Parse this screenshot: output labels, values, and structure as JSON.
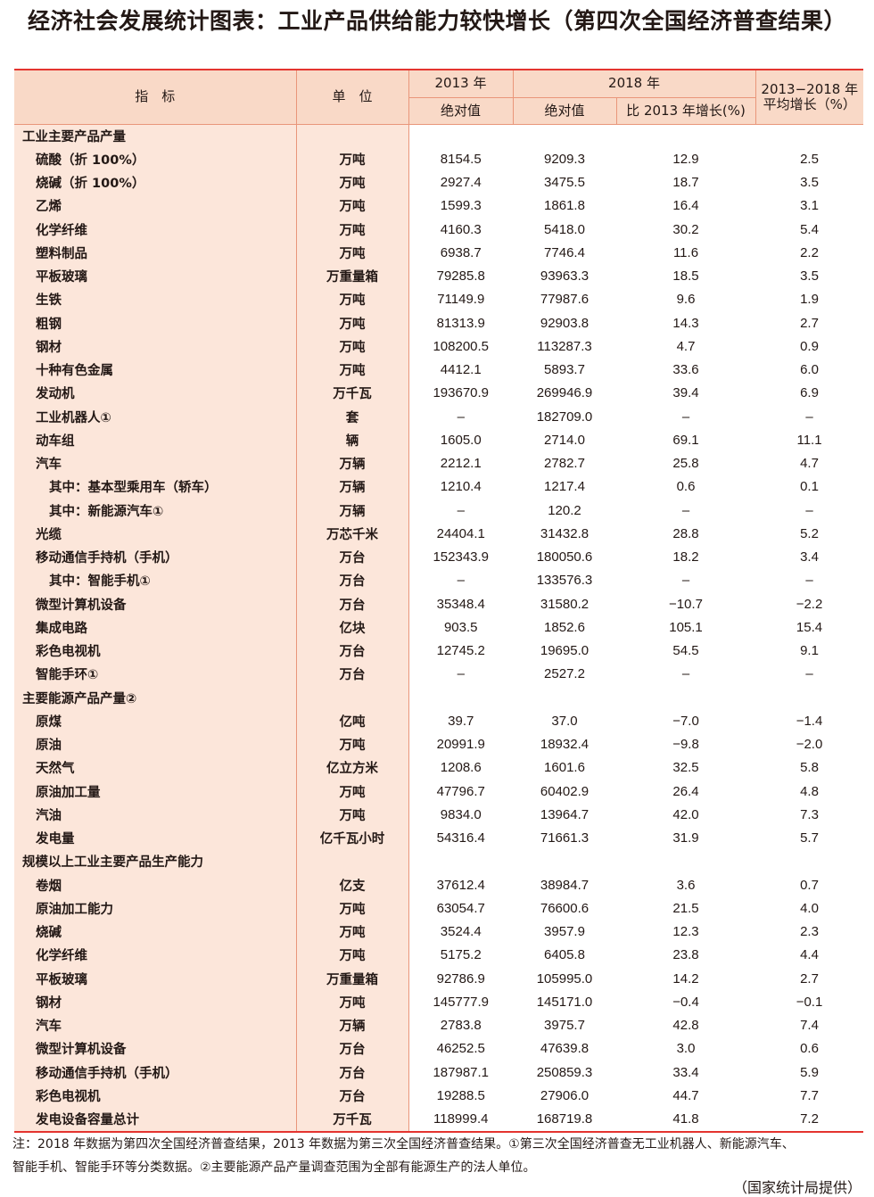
{
  "title": "经济社会发展统计图表：工业产品供给能力较快增长（第四次全国经济普查结果）",
  "header": {
    "indicator": "指　标",
    "unit": "单　位",
    "y2013": "2013 年",
    "y2018": "2018 年",
    "avg": "2013−2018 年平均增长（%）",
    "abs2013": "绝对值",
    "abs2018": "绝对值",
    "growth": "比 2013 年增长(%)"
  },
  "rows": [
    {
      "name": "工业主要产品产量",
      "unit": "",
      "a": "",
      "b": "",
      "c": "",
      "d": "",
      "level": 0
    },
    {
      "name": "硫酸（折 100%）",
      "unit": "万吨",
      "a": "8154.5",
      "b": "9209.3",
      "c": "12.9",
      "d": "2.5",
      "level": 1
    },
    {
      "name": "烧碱（折 100%）",
      "unit": "万吨",
      "a": "2927.4",
      "b": "3475.5",
      "c": "18.7",
      "d": "3.5",
      "level": 1
    },
    {
      "name": "乙烯",
      "unit": "万吨",
      "a": "1599.3",
      "b": "1861.8",
      "c": "16.4",
      "d": "3.1",
      "level": 1
    },
    {
      "name": "化学纤维",
      "unit": "万吨",
      "a": "4160.3",
      "b": "5418.0",
      "c": "30.2",
      "d": "5.4",
      "level": 1
    },
    {
      "name": "塑料制品",
      "unit": "万吨",
      "a": "6938.7",
      "b": "7746.4",
      "c": "11.6",
      "d": "2.2",
      "level": 1
    },
    {
      "name": "平板玻璃",
      "unit": "万重量箱",
      "a": "79285.8",
      "b": "93963.3",
      "c": "18.5",
      "d": "3.5",
      "level": 1
    },
    {
      "name": "生铁",
      "unit": "万吨",
      "a": "71149.9",
      "b": "77987.6",
      "c": "9.6",
      "d": "1.9",
      "level": 1
    },
    {
      "name": "粗钢",
      "unit": "万吨",
      "a": "81313.9",
      "b": "92903.8",
      "c": "14.3",
      "d": "2.7",
      "level": 1
    },
    {
      "name": "钢材",
      "unit": "万吨",
      "a": "108200.5",
      "b": "113287.3",
      "c": "4.7",
      "d": "0.9",
      "level": 1
    },
    {
      "name": "十种有色金属",
      "unit": "万吨",
      "a": "4412.1",
      "b": "5893.7",
      "c": "33.6",
      "d": "6.0",
      "level": 1
    },
    {
      "name": "发动机",
      "unit": "万千瓦",
      "a": "193670.9",
      "b": "269946.9",
      "c": "39.4",
      "d": "6.9",
      "level": 1
    },
    {
      "name": "工业机器人①",
      "unit": "套",
      "a": "–",
      "b": "182709.0",
      "c": "–",
      "d": "–",
      "level": 1
    },
    {
      "name": "动车组",
      "unit": "辆",
      "a": "1605.0",
      "b": "2714.0",
      "c": "69.1",
      "d": "11.1",
      "level": 1
    },
    {
      "name": "汽车",
      "unit": "万辆",
      "a": "2212.1",
      "b": "2782.7",
      "c": "25.8",
      "d": "4.7",
      "level": 1
    },
    {
      "name": "其中：基本型乘用车（轿车）",
      "unit": "万辆",
      "a": "1210.4",
      "b": "1217.4",
      "c": "0.6",
      "d": "0.1",
      "level": 2
    },
    {
      "name": "其中：新能源汽车①",
      "unit": "万辆",
      "a": "–",
      "b": "120.2",
      "c": "–",
      "d": "–",
      "level": 2
    },
    {
      "name": "光缆",
      "unit": "万芯千米",
      "a": "24404.1",
      "b": "31432.8",
      "c": "28.8",
      "d": "5.2",
      "level": 1
    },
    {
      "name": "移动通信手持机（手机）",
      "unit": "万台",
      "a": "152343.9",
      "b": "180050.6",
      "c": "18.2",
      "d": "3.4",
      "level": 1
    },
    {
      "name": "其中：智能手机①",
      "unit": "万台",
      "a": "–",
      "b": "133576.3",
      "c": "–",
      "d": "–",
      "level": 2
    },
    {
      "name": "微型计算机设备",
      "unit": "万台",
      "a": "35348.4",
      "b": "31580.2",
      "c": "−10.7",
      "d": "−2.2",
      "level": 1
    },
    {
      "name": "集成电路",
      "unit": "亿块",
      "a": "903.5",
      "b": "1852.6",
      "c": "105.1",
      "d": "15.4",
      "level": 1
    },
    {
      "name": "彩色电视机",
      "unit": "万台",
      "a": "12745.2",
      "b": "19695.0",
      "c": "54.5",
      "d": "9.1",
      "level": 1
    },
    {
      "name": "智能手环①",
      "unit": "万台",
      "a": "–",
      "b": "2527.2",
      "c": "–",
      "d": "–",
      "level": 1
    },
    {
      "name": "主要能源产品产量②",
      "unit": "",
      "a": "",
      "b": "",
      "c": "",
      "d": "",
      "level": 0
    },
    {
      "name": "原煤",
      "unit": "亿吨",
      "a": "39.7",
      "b": "37.0",
      "c": "−7.0",
      "d": "−1.4",
      "level": 1
    },
    {
      "name": "原油",
      "unit": "万吨",
      "a": "20991.9",
      "b": "18932.4",
      "c": "−9.8",
      "d": "−2.0",
      "level": 1
    },
    {
      "name": "天然气",
      "unit": "亿立方米",
      "a": "1208.6",
      "b": "1601.6",
      "c": "32.5",
      "d": "5.8",
      "level": 1
    },
    {
      "name": "原油加工量",
      "unit": "万吨",
      "a": "47796.7",
      "b": "60402.9",
      "c": "26.4",
      "d": "4.8",
      "level": 1
    },
    {
      "name": "汽油",
      "unit": "万吨",
      "a": "9834.0",
      "b": "13964.7",
      "c": "42.0",
      "d": "7.3",
      "level": 1
    },
    {
      "name": "发电量",
      "unit": "亿千瓦小时",
      "a": "54316.4",
      "b": "71661.3",
      "c": "31.9",
      "d": "5.7",
      "level": 1
    },
    {
      "name": "规模以上工业主要产品生产能力",
      "unit": "",
      "a": "",
      "b": "",
      "c": "",
      "d": "",
      "level": 0
    },
    {
      "name": "卷烟",
      "unit": "亿支",
      "a": "37612.4",
      "b": "38984.7",
      "c": "3.6",
      "d": "0.7",
      "level": 1
    },
    {
      "name": "原油加工能力",
      "unit": "万吨",
      "a": "63054.7",
      "b": "76600.6",
      "c": "21.5",
      "d": "4.0",
      "level": 1
    },
    {
      "name": "烧碱",
      "unit": "万吨",
      "a": "3524.4",
      "b": "3957.9",
      "c": "12.3",
      "d": "2.3",
      "level": 1
    },
    {
      "name": "化学纤维",
      "unit": "万吨",
      "a": "5175.2",
      "b": "6405.8",
      "c": "23.8",
      "d": "4.4",
      "level": 1
    },
    {
      "name": "平板玻璃",
      "unit": "万重量箱",
      "a": "92786.9",
      "b": "105995.0",
      "c": "14.2",
      "d": "2.7",
      "level": 1
    },
    {
      "name": "钢材",
      "unit": "万吨",
      "a": "145777.9",
      "b": "145171.0",
      "c": "−0.4",
      "d": "−0.1",
      "level": 1
    },
    {
      "name": "汽车",
      "unit": "万辆",
      "a": "2783.8",
      "b": "3975.7",
      "c": "42.8",
      "d": "7.4",
      "level": 1
    },
    {
      "name": "微型计算机设备",
      "unit": "万台",
      "a": "46252.5",
      "b": "47639.8",
      "c": "3.0",
      "d": "0.6",
      "level": 1
    },
    {
      "name": "移动通信手持机（手机）",
      "unit": "万台",
      "a": "187987.1",
      "b": "250859.3",
      "c": "33.4",
      "d": "5.9",
      "level": 1
    },
    {
      "name": "彩色电视机",
      "unit": "万台",
      "a": "19288.5",
      "b": "27906.0",
      "c": "44.7",
      "d": "7.7",
      "level": 1
    },
    {
      "name": "发电设备容量总计",
      "unit": "万千瓦",
      "a": "118999.4",
      "b": "168719.8",
      "c": "41.8",
      "d": "7.2",
      "level": 1
    }
  ],
  "notes": {
    "line1": "注：2018 年数据为第四次全国经济普查结果，2013 年数据为第三次全国经济普查结果。①第三次全国经济普查无工业机器人、新能源汽车、",
    "line2": "智能手机、智能手环等分类数据。②主要能源产品产量调查范围为全部有能源生产的法人单位。",
    "source": "（国家统计局提供）"
  },
  "colors": {
    "rule": "#e4342f",
    "header_fill": "#f9d9c7",
    "label_fill": "#fce6da"
  }
}
